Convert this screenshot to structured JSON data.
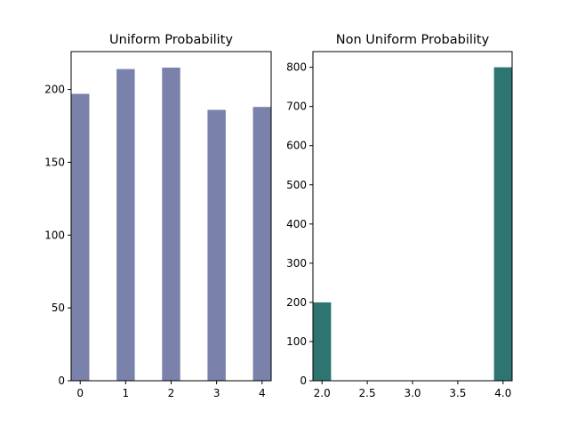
{
  "chart_data": [
    {
      "type": "bar",
      "title": "Uniform Probability",
      "xlabel": "",
      "ylabel": "",
      "x": [
        0,
        1,
        2,
        3,
        4
      ],
      "values": [
        197,
        214,
        215,
        186,
        188
      ],
      "xlim": [
        -0.2,
        4.2
      ],
      "ylim": [
        0,
        226
      ],
      "xticks": [
        0,
        1,
        2,
        3,
        4
      ],
      "yticks": [
        0,
        50,
        100,
        150,
        200
      ],
      "bar_width": 0.4,
      "color": "#7a82ab",
      "grid": false
    },
    {
      "type": "bar",
      "title": "Non Uniform Probability",
      "xlabel": "",
      "ylabel": "",
      "x": [
        2.0,
        4.0
      ],
      "values": [
        200,
        800
      ],
      "xlim": [
        1.9,
        4.1
      ],
      "ylim": [
        0,
        840
      ],
      "xticks": [
        2.0,
        2.5,
        3.0,
        3.5,
        4.0
      ],
      "xtick_labels": [
        "2.0",
        "2.5",
        "3.0",
        "3.5",
        "4.0"
      ],
      "yticks": [
        0,
        100,
        200,
        300,
        400,
        500,
        600,
        700,
        800
      ],
      "bar_width": 0.2,
      "color": "#2e7572",
      "grid": false
    }
  ]
}
